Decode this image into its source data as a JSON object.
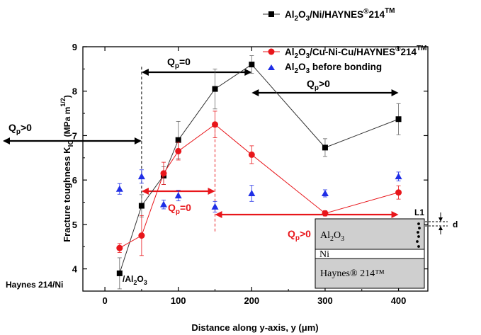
{
  "chart_data": {
    "type": "line",
    "xlabel": "Distance along y-axis, y (μm)",
    "ylabel": "Fracture toughness K",
    "ylabel_sub": "IC",
    "ylabel_unit": "(MPa m",
    "ylabel_unit_sup": "1/2",
    "ylabel_unit_close": ")",
    "xlim": [
      -30,
      440
    ],
    "ylim": [
      3.5,
      9.0
    ],
    "xticks": [
      0,
      100,
      200,
      300,
      400
    ],
    "yticks": [
      4,
      5,
      6,
      7,
      8,
      9
    ],
    "xtick_labels": [
      "0",
      "100",
      "200",
      "300",
      "400"
    ],
    "ytick_labels": [
      "4",
      "5",
      "6",
      "7",
      "8",
      "9"
    ],
    "grid": false,
    "legend_position": "top-right",
    "series": [
      {
        "name": "Al2O3/Ni/HAYNES®214™",
        "name_parts": [
          "Al",
          "2",
          "O",
          "3",
          "/Ni/HAYNES",
          "®",
          "214",
          "TM"
        ],
        "color": "#333333",
        "marker": "square",
        "x": [
          20,
          50,
          80,
          100,
          150,
          200,
          300,
          400
        ],
        "y": [
          3.9,
          5.42,
          6.1,
          6.9,
          8.05,
          8.6,
          6.73,
          7.37
        ],
        "err": [
          0.35,
          0.25,
          0.2,
          0.42,
          0.45,
          0.2,
          0.2,
          0.35
        ]
      },
      {
        "name": "Al2O3/Cu-Ni-Cu/HAYNES®214™",
        "name_parts": [
          "Al",
          "2",
          "O",
          "3",
          "/Cu-Ni-Cu/HAYNES",
          "®",
          "214",
          "TM"
        ],
        "color": "#e8161b",
        "marker": "circle",
        "x": [
          20,
          50,
          80,
          100,
          150,
          200,
          300,
          400
        ],
        "y": [
          4.47,
          4.75,
          6.15,
          6.65,
          7.25,
          6.57,
          5.25,
          5.72
        ],
        "err": [
          0.1,
          0.45,
          0.25,
          0.2,
          0.3,
          0.2,
          0.06,
          0.15
        ]
      },
      {
        "name": "Al2O3 before bonding",
        "name_parts": [
          "Al",
          "2",
          "O",
          "3",
          " before bonding"
        ],
        "color": "#1f2ee6",
        "marker": "triangle",
        "x": [
          20,
          50,
          80,
          100,
          150,
          200,
          300,
          400
        ],
        "y": [
          5.8,
          6.08,
          5.45,
          5.65,
          5.4,
          5.7,
          5.7,
          6.08
        ],
        "err": [
          0.12,
          0.15,
          0.1,
          0.12,
          0.12,
          0.18,
          0.08,
          0.1
        ]
      }
    ],
    "annotations": {
      "qp_zero_black": {
        "q": "Q",
        "sub": "p",
        "rest": "=0"
      },
      "qp_pos_black_left": {
        "q": "Q",
        "sub": "p",
        "rest": ">0"
      },
      "qp_pos_black_right": {
        "q": "Q",
        "sub": "p",
        "rest": ">0"
      },
      "qp_zero_red": {
        "q": "Q",
        "sub": "p",
        "rest": "=0"
      },
      "qp_pos_red": {
        "q": "Q",
        "sub": "p",
        "rest": ">0"
      },
      "haynes_ni": "Haynes 214/Ni",
      "al2o3_interface": {
        "pre": "/Al",
        "sub1": "2",
        "mid": "O",
        "sub2": "3"
      }
    },
    "inset": {
      "top_layer": "Al2O3",
      "top_layer_parts": [
        "Al",
        "2",
        "O",
        "3"
      ],
      "middle_layer": "Ni",
      "bottom_layer": "Haynes® 214™",
      "label_l1": "L1",
      "label_d": "d"
    }
  }
}
